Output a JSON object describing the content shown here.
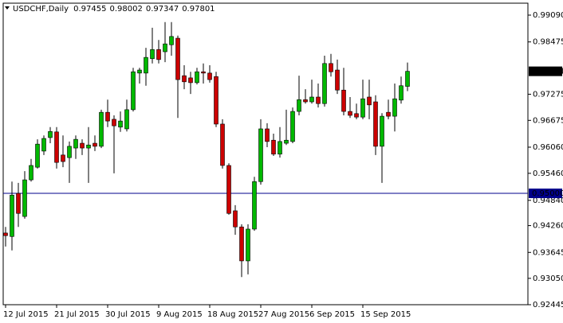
{
  "chart_data": {
    "type": "candlestick",
    "title": "USDCHF,Daily",
    "categories": [
      "12 Jul 2015",
      null,
      null,
      null,
      null,
      null,
      null,
      null,
      "21 Jul 2015",
      null,
      null,
      null,
      null,
      null,
      null,
      null,
      "30 Jul 2015",
      null,
      null,
      null,
      null,
      null,
      null,
      null,
      "9 Aug 2015",
      null,
      null,
      null,
      null,
      null,
      null,
      null,
      "18 Aug 2015",
      null,
      null,
      null,
      null,
      null,
      null,
      null,
      "27 Aug 2015",
      null,
      null,
      null,
      null,
      null,
      null,
      null,
      "6 Sep 2015",
      null,
      null,
      null,
      null,
      null,
      null,
      null,
      "15 Sep 2015",
      null,
      null,
      null,
      null,
      null,
      null,
      null
    ],
    "open": [
      0.9409,
      0.9401,
      0.95,
      0.9447,
      0.9531,
      0.956,
      0.9597,
      0.9628,
      0.9641,
      0.9588,
      0.9582,
      0.9604,
      0.9615,
      0.9604,
      0.9615,
      0.9608,
      0.9686,
      0.967,
      0.9652,
      0.9648,
      0.9692,
      0.9776,
      0.9776,
      0.9809,
      0.983,
      0.9825,
      0.9841,
      0.9856,
      0.977,
      0.9765,
      0.9754,
      0.9779,
      0.9776,
      0.9768,
      0.9659,
      0.9564,
      0.946,
      0.9423,
      0.9345,
      0.9418,
      0.9527,
      0.9648,
      0.9622,
      0.959,
      0.9615,
      0.9619,
      0.9688,
      0.9715,
      0.971,
      0.9721,
      0.9706,
      0.9798,
      0.9783,
      0.9737,
      0.9688,
      0.9683,
      0.9675,
      0.9721,
      0.971,
      0.9608,
      0.9686,
      0.9677,
      0.9714,
      0.97455
    ],
    "high": [
      0.9423,
      0.9527,
      0.9524,
      0.9551,
      0.9579,
      0.9624,
      0.9633,
      0.9652,
      0.9652,
      0.9633,
      0.9619,
      0.9633,
      0.9624,
      0.9652,
      0.9633,
      0.9692,
      0.9715,
      0.9679,
      0.9688,
      0.9715,
      0.9788,
      0.9788,
      0.9834,
      0.988,
      0.9852,
      0.9893,
      0.9893,
      0.9862,
      0.9794,
      0.9779,
      0.9788,
      0.9798,
      0.9794,
      0.9779,
      0.967,
      0.9569,
      0.9473,
      0.9429,
      0.9429,
      0.9538,
      0.967,
      0.9661,
      0.9637,
      0.9652,
      0.9692,
      0.9697,
      0.977,
      0.9739,
      0.9761,
      0.9752,
      0.9816,
      0.982,
      0.9807,
      0.9788,
      0.9721,
      0.9706,
      0.9761,
      0.9761,
      0.9725,
      0.9684,
      0.9715,
      0.9752,
      0.9768,
      0.98002
    ],
    "low": [
      0.9378,
      0.9369,
      0.9423,
      0.9442,
      0.9527,
      0.9557,
      0.9588,
      0.9615,
      0.9557,
      0.956,
      0.9524,
      0.9579,
      0.9588,
      0.9524,
      0.9597,
      0.9604,
      0.9652,
      0.9546,
      0.9641,
      0.9642,
      0.9688,
      0.9752,
      0.9747,
      0.9798,
      0.9798,
      0.9801,
      0.9816,
      0.9673,
      0.9739,
      0.9728,
      0.975,
      0.9752,
      0.9754,
      0.9652,
      0.9557,
      0.9451,
      0.9405,
      0.9308,
      0.9314,
      0.9414,
      0.952,
      0.9606,
      0.9586,
      0.9582,
      0.9611,
      0.9615,
      0.9679,
      0.9706,
      0.9706,
      0.9697,
      0.9699,
      0.9768,
      0.9728,
      0.9679,
      0.9673,
      0.967,
      0.967,
      0.967,
      0.9588,
      0.9524,
      0.967,
      0.9642,
      0.9706,
      0.97347
    ],
    "close": [
      0.9403,
      0.9496,
      0.9454,
      0.9531,
      0.9564,
      0.9613,
      0.9626,
      0.9642,
      0.9571,
      0.9573,
      0.9608,
      0.9624,
      0.9604,
      0.9611,
      0.9608,
      0.9686,
      0.9666,
      0.9655,
      0.9666,
      0.9692,
      0.9779,
      0.9783,
      0.9812,
      0.983,
      0.9807,
      0.9843,
      0.986,
      0.9761,
      0.9756,
      0.9754,
      0.9779,
      0.9776,
      0.9761,
      0.9659,
      0.9564,
      0.9454,
      0.9423,
      0.9345,
      0.9418,
      0.9527,
      0.9648,
      0.9619,
      0.959,
      0.9619,
      0.9622,
      0.9688,
      0.9715,
      0.971,
      0.9721,
      0.9706,
      0.9798,
      0.9779,
      0.9737,
      0.9688,
      0.9679,
      0.9675,
      0.9717,
      0.9703,
      0.9608,
      0.9677,
      0.9677,
      0.9717,
      0.9747,
      0.97801
    ],
    "up_color": "#00b800",
    "down_color": "#cc0000",
    "ylim": [
      0.92445,
      0.99364
    ],
    "yticks": [
      {
        "value": 0.9909,
        "label": "0.99090"
      },
      0.98475,
      0.97275,
      0.96675,
      {
        "value": 0.9606,
        "label": "0.96060"
      },
      {
        "value": 0.9546,
        "label": "0.95460"
      },
      {
        "value": 0.9484,
        "label": "0.94840"
      },
      {
        "value": 0.9426,
        "label": "0.94260"
      },
      0.93645,
      {
        "value": 0.9305,
        "label": "0.93050"
      },
      0.92445
    ],
    "hline": {
      "value": 0.95,
      "label": "0.95000",
      "color": "#00008b"
    }
  }
}
